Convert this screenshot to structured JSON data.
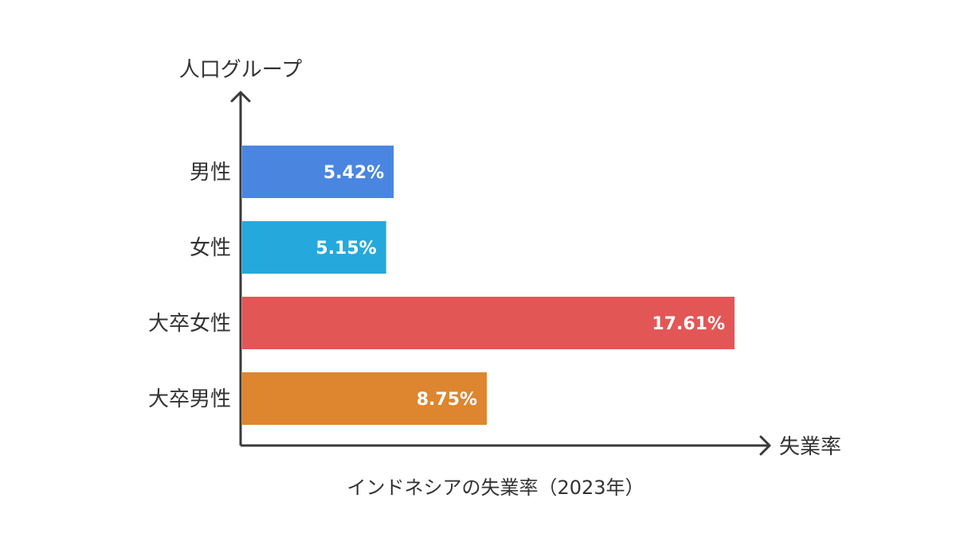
{
  "chart_data": {
    "type": "bar",
    "orientation": "horizontal",
    "title": "インドネシアの失業率（2023年）",
    "xlabel": "失業率",
    "ylabel": "人口グループ",
    "categories": [
      "男性",
      "女性",
      "大卒女性",
      "大卒男性"
    ],
    "values": [
      5.42,
      5.15,
      17.61,
      8.75
    ],
    "value_labels": [
      "5.42%",
      "5.15%",
      "17.61%",
      "8.75%"
    ],
    "colors": [
      "#4a86e0",
      "#25a9dc",
      "#e35656",
      "#de852f"
    ],
    "xlim": [
      0,
      17.61
    ],
    "grid": false,
    "legend": "none"
  }
}
